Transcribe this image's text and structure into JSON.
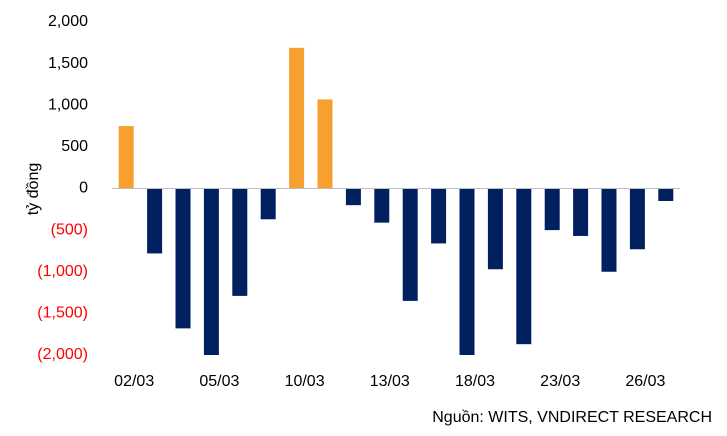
{
  "chart_data": {
    "type": "bar",
    "ylabel": "tỷ đồng",
    "source": "Nguồn:  WITS, VNDIRECT RESEARCH",
    "categories": [
      "02/03",
      null,
      null,
      "05/03",
      null,
      null,
      "10/03",
      null,
      null,
      "13/03",
      null,
      null,
      "18/03",
      null,
      null,
      "23/03",
      null,
      null,
      "26/03",
      null
    ],
    "values": [
      750,
      -780,
      -1680,
      -2000,
      -1290,
      -370,
      1690,
      1070,
      -200,
      -410,
      -1350,
      -660,
      -2000,
      -970,
      -1870,
      -500,
      -570,
      -1000,
      -730,
      -150
    ],
    "colors": [
      "#f7a030",
      "#002060",
      "#002060",
      "#002060",
      "#002060",
      "#002060",
      "#f7a030",
      "#f7a030",
      "#002060",
      "#002060",
      "#002060",
      "#002060",
      "#002060",
      "#002060",
      "#002060",
      "#002060",
      "#002060",
      "#002060",
      "#002060",
      "#002060"
    ],
    "ylim": [
      -2000,
      2000
    ],
    "yticks": [
      {
        "value": 2000,
        "label": "2,000"
      },
      {
        "value": 1500,
        "label": "1,500"
      },
      {
        "value": 1000,
        "label": "1,000"
      },
      500,
      0,
      {
        "value": -500,
        "label": "(500)"
      },
      {
        "value": -1000,
        "label": "(1,000)"
      },
      {
        "value": -1500,
        "label": "(1,500)"
      },
      {
        "value": -2000,
        "label": "(2,000)"
      }
    ],
    "negative_tick_color": "#ff0000",
    "grid": false
  }
}
